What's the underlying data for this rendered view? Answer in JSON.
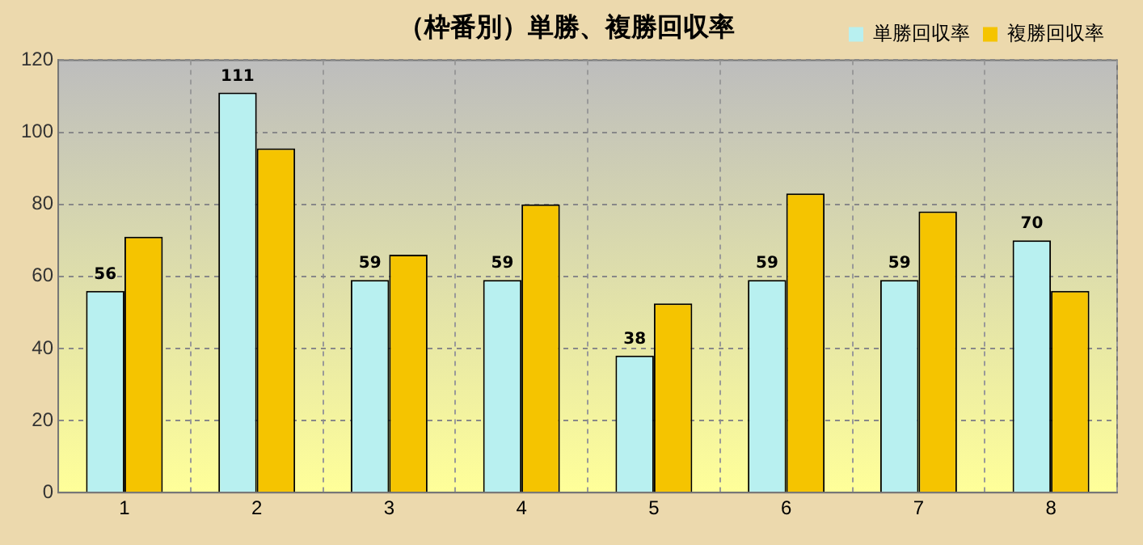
{
  "chart_data": {
    "type": "bar",
    "title": "（枠番別）単勝、複勝回収率",
    "categories": [
      "1",
      "2",
      "3",
      "4",
      "5",
      "6",
      "7",
      "8"
    ],
    "series": [
      {
        "name": "単勝回収率",
        "color": "#b8f0f0",
        "values": [
          56,
          111,
          59,
          59,
          38,
          59,
          59,
          70
        ],
        "value_labels": [
          "56",
          "111",
          "59",
          "59",
          "38",
          "59",
          "59",
          "70"
        ]
      },
      {
        "name": "複勝回収率",
        "color": "#f5c400",
        "values": [
          71,
          95.5,
          66,
          80,
          52.5,
          83,
          78,
          56
        ]
      }
    ],
    "ylim": [
      0,
      120
    ],
    "yticks": [
      0,
      20,
      40,
      60,
      80,
      100,
      120
    ],
    "grid": true,
    "legend": "top right"
  }
}
